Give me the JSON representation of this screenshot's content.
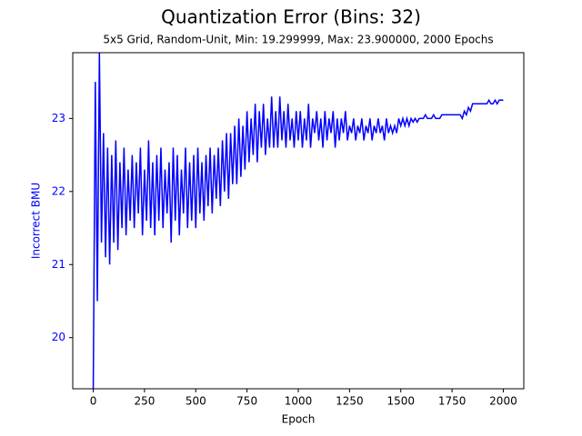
{
  "chart_data": {
    "type": "line",
    "title": "Quantization Error (Bins: 32)",
    "subtitle": "5x5 Grid, Random-Unit, Min: 19.299999, Max: 23.900000, 2000 Epochs",
    "xlabel": "Epoch",
    "ylabel": "Incorrect BMU",
    "xlim": [
      -100,
      2100
    ],
    "ylim": [
      19.3,
      23.9
    ],
    "xticks": [
      0,
      250,
      500,
      750,
      1000,
      1250,
      1500,
      1750,
      2000
    ],
    "yticks": [
      20,
      21,
      22,
      23
    ],
    "axis_color": "#0000ff",
    "x": [
      0,
      10,
      20,
      30,
      40,
      50,
      60,
      70,
      80,
      90,
      100,
      110,
      120,
      130,
      140,
      150,
      160,
      170,
      180,
      190,
      200,
      210,
      220,
      230,
      240,
      250,
      260,
      270,
      280,
      290,
      300,
      310,
      320,
      330,
      340,
      350,
      360,
      370,
      380,
      390,
      400,
      410,
      420,
      430,
      440,
      450,
      460,
      470,
      480,
      490,
      500,
      510,
      520,
      530,
      540,
      550,
      560,
      570,
      580,
      590,
      600,
      610,
      620,
      630,
      640,
      650,
      660,
      670,
      680,
      690,
      700,
      710,
      720,
      730,
      740,
      750,
      760,
      770,
      780,
      790,
      800,
      810,
      820,
      830,
      840,
      850,
      860,
      870,
      880,
      890,
      900,
      910,
      920,
      930,
      940,
      950,
      960,
      970,
      980,
      990,
      1000,
      1010,
      1020,
      1030,
      1040,
      1050,
      1060,
      1070,
      1080,
      1090,
      1100,
      1110,
      1120,
      1130,
      1140,
      1150,
      1160,
      1170,
      1180,
      1190,
      1200,
      1210,
      1220,
      1230,
      1240,
      1250,
      1260,
      1270,
      1280,
      1290,
      1300,
      1310,
      1320,
      1330,
      1340,
      1350,
      1360,
      1370,
      1380,
      1390,
      1400,
      1410,
      1420,
      1430,
      1440,
      1450,
      1460,
      1470,
      1480,
      1490,
      1500,
      1510,
      1520,
      1530,
      1540,
      1550,
      1560,
      1570,
      1580,
      1590,
      1600,
      1610,
      1620,
      1630,
      1640,
      1650,
      1660,
      1670,
      1680,
      1690,
      1700,
      1710,
      1720,
      1730,
      1740,
      1750,
      1760,
      1770,
      1780,
      1790,
      1800,
      1810,
      1820,
      1830,
      1840,
      1850,
      1860,
      1870,
      1880,
      1890,
      1900,
      1910,
      1920,
      1930,
      1940,
      1950,
      1960,
      1970,
      1980,
      1990,
      2000
    ],
    "series": [
      {
        "name": "Incorrect BMU",
        "color": "#0000ff",
        "values": [
          19.3,
          23.5,
          20.5,
          23.9,
          21.3,
          22.8,
          21.1,
          22.6,
          21.0,
          22.5,
          21.3,
          22.7,
          21.2,
          22.4,
          21.5,
          22.6,
          21.4,
          22.3,
          21.6,
          22.5,
          21.5,
          22.4,
          21.7,
          22.6,
          21.4,
          22.3,
          21.6,
          22.7,
          21.5,
          22.4,
          21.4,
          22.5,
          21.6,
          22.6,
          21.5,
          22.3,
          21.7,
          22.4,
          21.3,
          22.6,
          21.6,
          22.5,
          21.4,
          22.3,
          21.7,
          22.6,
          21.5,
          22.4,
          21.6,
          22.5,
          21.5,
          22.6,
          21.7,
          22.4,
          21.6,
          22.5,
          21.8,
          22.6,
          21.7,
          22.5,
          21.9,
          22.6,
          21.8,
          22.7,
          22.0,
          22.8,
          21.9,
          22.8,
          22.1,
          22.9,
          22.1,
          23.0,
          22.2,
          22.9,
          22.3,
          23.1,
          22.4,
          23.0,
          22.5,
          23.2,
          22.4,
          23.1,
          22.6,
          23.2,
          22.5,
          23.0,
          22.6,
          23.3,
          22.6,
          23.1,
          22.6,
          23.3,
          22.7,
          23.1,
          22.6,
          23.2,
          22.7,
          23.0,
          22.6,
          23.1,
          22.7,
          23.1,
          22.6,
          23.0,
          22.7,
          23.2,
          22.6,
          23.0,
          22.8,
          23.1,
          22.7,
          23.0,
          22.6,
          23.1,
          22.7,
          23.0,
          22.8,
          23.1,
          22.6,
          23.0,
          22.7,
          23.0,
          22.8,
          23.1,
          22.7,
          22.9,
          22.8,
          23.0,
          22.7,
          22.9,
          22.8,
          23.0,
          22.7,
          22.9,
          22.8,
          23.0,
          22.7,
          22.9,
          22.8,
          23.0,
          22.8,
          22.9,
          22.7,
          23.0,
          22.8,
          22.9,
          22.8,
          22.9,
          22.8,
          23.0,
          22.9,
          23.0,
          22.9,
          23.0,
          22.9,
          23.0,
          22.95,
          23.0,
          22.95,
          23.0,
          23.0,
          23.0,
          23.05,
          23.0,
          23.0,
          23.0,
          23.05,
          23.0,
          23.0,
          23.0,
          23.05,
          23.05,
          23.05,
          23.05,
          23.05,
          23.05,
          23.05,
          23.05,
          23.05,
          23.05,
          23.0,
          23.1,
          23.05,
          23.15,
          23.1,
          23.2,
          23.2,
          23.2,
          23.2,
          23.2,
          23.2,
          23.2,
          23.2,
          23.25,
          23.2,
          23.2,
          23.25,
          23.2,
          23.25,
          23.25,
          23.25
        ]
      }
    ]
  }
}
